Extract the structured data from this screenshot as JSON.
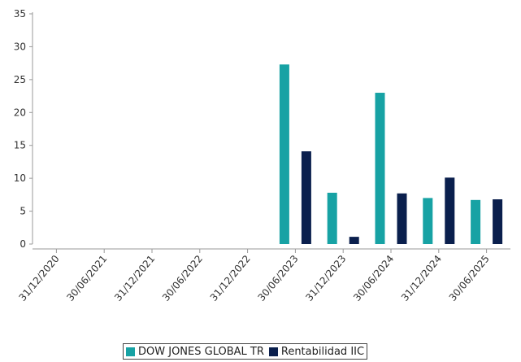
{
  "chart_data": {
    "type": "bar",
    "categories": [
      "31/12/2020",
      "30/06/2021",
      "31/12/2021",
      "30/06/2022",
      "31/12/2022",
      "30/06/2023",
      "31/12/2023",
      "30/06/2024",
      "31/12/2024",
      "30/06/2025"
    ],
    "series": [
      {
        "name": "DOW JONES GLOBAL TR",
        "color": "#17a2a4",
        "values": [
          null,
          null,
          null,
          null,
          null,
          27.3,
          7.8,
          23.0,
          7.0,
          6.7
        ]
      },
      {
        "name": "Rentabilidad IIC",
        "color": "#0a1f4d",
        "values": [
          null,
          null,
          null,
          null,
          null,
          14.1,
          1.1,
          7.7,
          10.1,
          6.8
        ]
      }
    ],
    "yticks": [
      0,
      5,
      10,
      15,
      20,
      25,
      30,
      35
    ],
    "ylim": [
      0,
      35
    ],
    "grid": false,
    "legend_position": "bottom"
  }
}
